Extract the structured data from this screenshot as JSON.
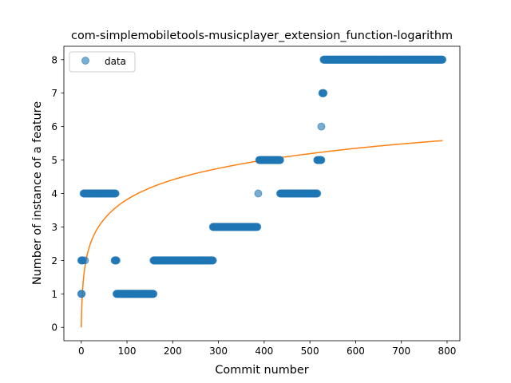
{
  "chart_data": {
    "type": "scatter",
    "title": "com-simplemobiletools-musicplayer_extension_function-logarithm",
    "xlabel": "Commit number",
    "ylabel": "Number of instance of a feature",
    "xlim": [
      -38,
      828
    ],
    "ylim": [
      -0.4,
      8.4
    ],
    "xticks": [
      0,
      100,
      200,
      300,
      400,
      500,
      600,
      700,
      800
    ],
    "yticks": [
      0,
      1,
      2,
      3,
      4,
      5,
      6,
      7,
      8
    ],
    "grid": false,
    "legend": {
      "position": "top-left",
      "entries": [
        "data"
      ]
    },
    "colors": {
      "data": "#1f77b4",
      "fit": "#ff7f0e"
    },
    "series": [
      {
        "name": "data",
        "kind": "scatter",
        "segments": [
          {
            "x_start": 0,
            "x_end": 1,
            "y": 1
          },
          {
            "x_start": 0,
            "x_end": 3,
            "y": 2
          },
          {
            "x_start": 8,
            "x_end": 8,
            "y": 2
          },
          {
            "x_start": 5,
            "x_end": 75,
            "y": 4
          },
          {
            "x_start": 73,
            "x_end": 77,
            "y": 2
          },
          {
            "x_start": 77,
            "x_end": 158,
            "y": 1
          },
          {
            "x_start": 158,
            "x_end": 288,
            "y": 2
          },
          {
            "x_start": 288,
            "x_end": 385,
            "y": 3
          },
          {
            "x_start": 387,
            "x_end": 387,
            "y": 4
          },
          {
            "x_start": 389,
            "x_end": 435,
            "y": 5
          },
          {
            "x_start": 435,
            "x_end": 516,
            "y": 4
          },
          {
            "x_start": 516,
            "x_end": 525,
            "y": 5
          },
          {
            "x_start": 525,
            "x_end": 525,
            "y": 6
          },
          {
            "x_start": 527,
            "x_end": 530,
            "y": 7
          },
          {
            "x_start": 530,
            "x_end": 790,
            "y": 8
          }
        ]
      },
      {
        "kind": "line",
        "fit": "logarithmic",
        "x_range": [
          0,
          790
        ],
        "samples": [
          {
            "x": 0,
            "y": 0.0
          },
          {
            "x": 50,
            "y": 3.23
          },
          {
            "x": 100,
            "y": 3.82
          },
          {
            "x": 200,
            "y": 4.41
          },
          {
            "x": 300,
            "y": 4.75
          },
          {
            "x": 400,
            "y": 5.0
          },
          {
            "x": 500,
            "y": 5.19
          },
          {
            "x": 600,
            "y": 5.35
          },
          {
            "x": 700,
            "y": 5.48
          },
          {
            "x": 790,
            "y": 5.58
          }
        ]
      }
    ]
  }
}
